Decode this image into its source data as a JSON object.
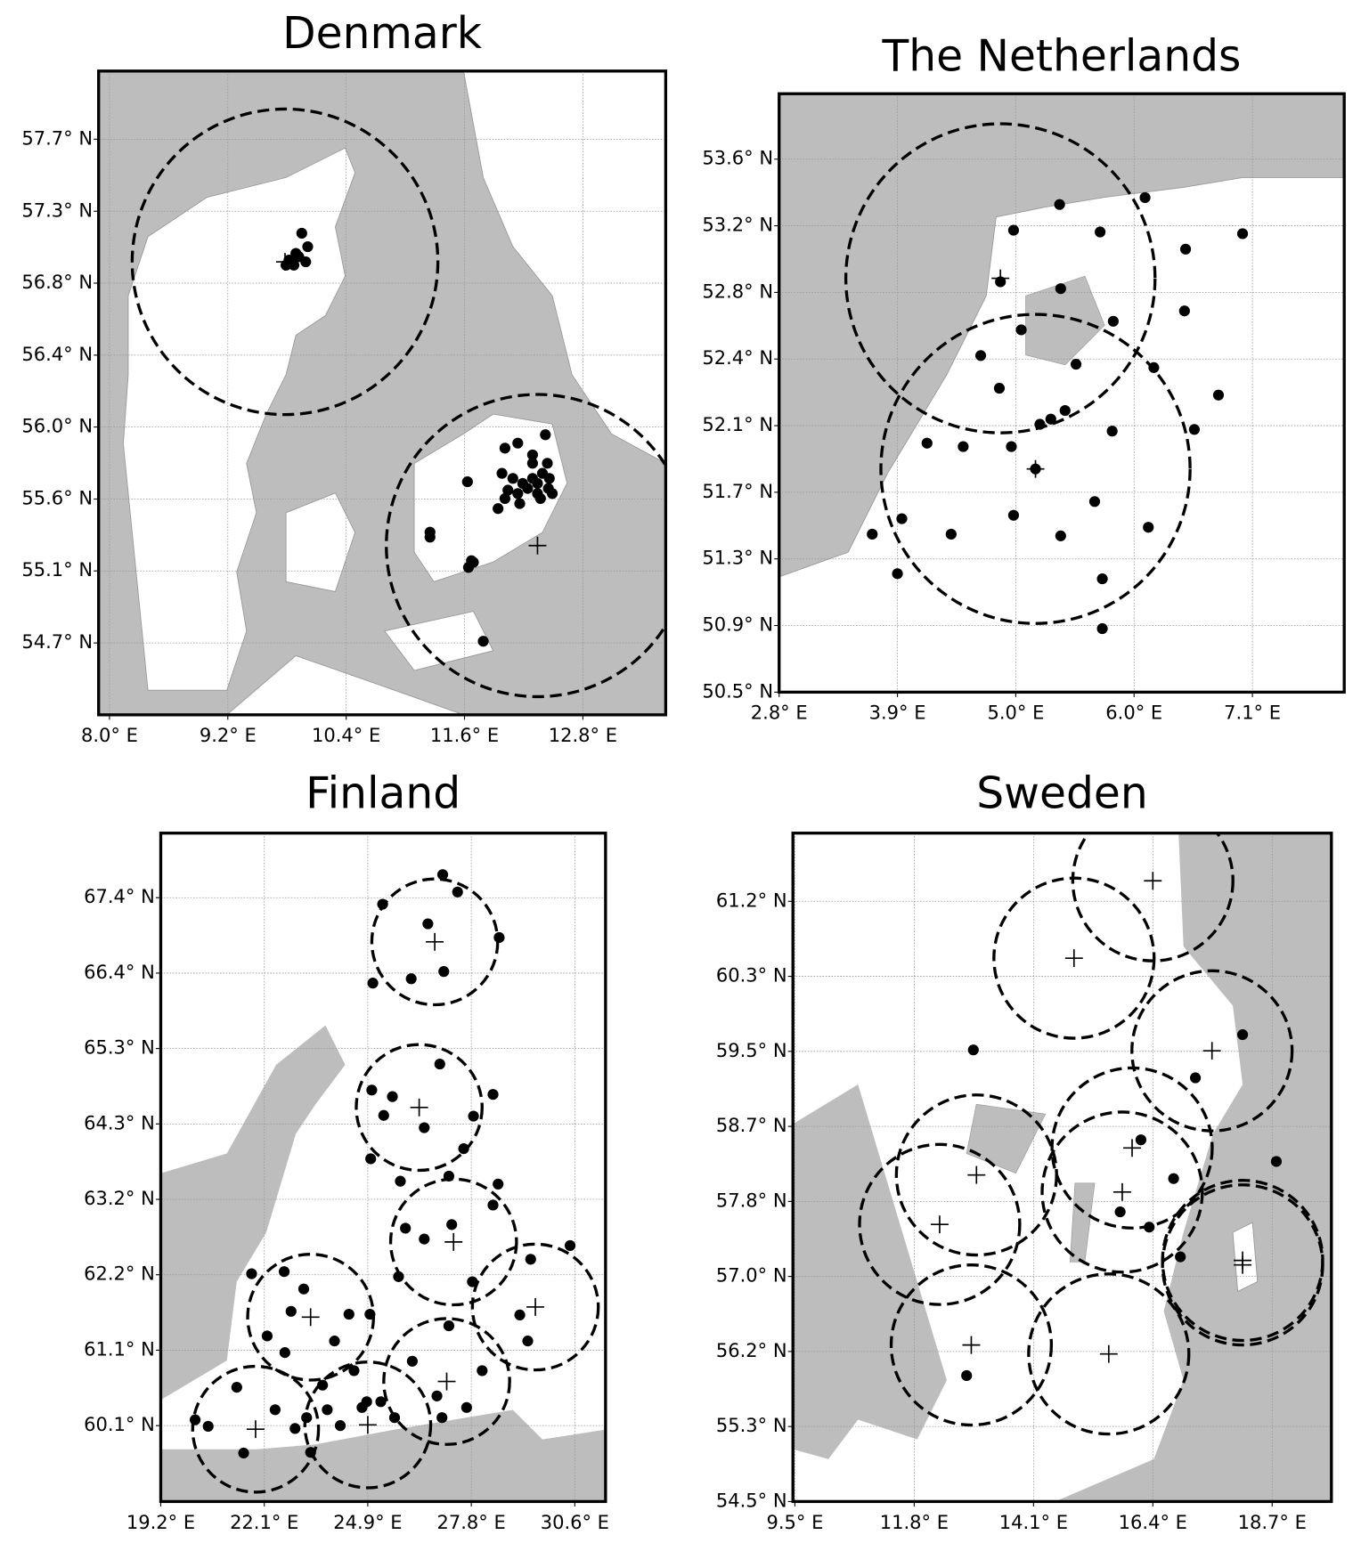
{
  "maps": [
    {
      "title": "Denmark",
      "xlim": [
        7.89,
        13.64
      ],
      "ylim": [
        54.272,
        58.106
      ],
      "xticks": [
        {
          "value": 8.0,
          "label": "8.0° E"
        },
        {
          "value": 9.2,
          "label": "9.2° E"
        },
        {
          "value": 10.4,
          "label": "10.4° E"
        },
        {
          "value": 11.6,
          "label": "11.6° E"
        },
        {
          "value": 12.8,
          "label": "12.8° E"
        }
      ],
      "yticks": [
        {
          "value": 54.7,
          "label": "54.7° N"
        },
        {
          "value": 55.129,
          "label": "55.1° N"
        },
        {
          "value": 55.557,
          "label": "55.6° N"
        },
        {
          "value": 55.986,
          "label": "56.0° N"
        },
        {
          "value": 56.414,
          "label": "56.4° N"
        },
        {
          "value": 56.843,
          "label": "56.8° N"
        },
        {
          "value": 57.271,
          "label": "57.3° N"
        },
        {
          "value": 57.7,
          "label": "57.7° N"
        }
      ],
      "stations": {
        "lon": [
          9.95,
          10.01,
          9.89,
          9.82,
          9.87,
          9.99,
          9.79,
          9.92,
          11.25,
          11.25,
          11.63,
          11.67,
          11.64,
          11.69,
          11.79,
          12.01,
          12.14,
          12.29,
          12.42,
          12.29,
          11.98,
          12.09,
          12.19,
          12.39,
          12.34,
          12.45,
          12.49,
          11.94,
          12.01,
          12.14,
          12.24,
          12.34,
          12.44,
          12.37,
          12.16,
          12.04,
          12.29,
          12.46
        ],
        "lat": [
          57.14,
          57.06,
          57.02,
          56.98,
          56.95,
          56.97,
          56.95,
          57.0,
          55.36,
          55.33,
          55.66,
          55.19,
          55.15,
          55.18,
          54.71,
          55.86,
          55.89,
          55.82,
          55.94,
          55.77,
          55.71,
          55.68,
          55.65,
          55.71,
          55.59,
          55.62,
          55.59,
          55.5,
          55.56,
          55.59,
          55.62,
          55.65,
          55.77,
          55.56,
          55.53,
          55.61,
          55.68,
          55.68
        ]
      },
      "sites": {
        "lon": [
          9.78,
          12.34
        ],
        "lat": [
          56.97,
          55.28
        ],
        "radius": [
          0.91,
          0.9
        ]
      }
    },
    {
      "title": "The Netherlands",
      "xlim": [
        2.8,
        7.958
      ],
      "ylim": [
        50.5,
        53.985
      ],
      "xticks": [
        {
          "value": 2.8,
          "label": "2.8° E"
        },
        {
          "value": 3.88,
          "label": "3.9° E"
        },
        {
          "value": 4.96,
          "label": "5.0° E"
        },
        {
          "value": 6.04,
          "label": "6.0° E"
        },
        {
          "value": 7.12,
          "label": "7.1° E"
        }
      ],
      "yticks": [
        {
          "value": 50.5,
          "label": "50.5° N"
        },
        {
          "value": 50.888,
          "label": "50.9° N"
        },
        {
          "value": 51.276,
          "label": "51.3° N"
        },
        {
          "value": 51.664,
          "label": "51.7° N"
        },
        {
          "value": 52.052,
          "label": "52.1° N"
        },
        {
          "value": 52.44,
          "label": "52.4° N"
        },
        {
          "value": 52.828,
          "label": "52.8° N"
        },
        {
          "value": 53.216,
          "label": "53.2° N"
        },
        {
          "value": 53.604,
          "label": "53.6° N"
        }
      ],
      "stations": {
        "lon": [
          5.36,
          6.14,
          4.94,
          5.73,
          6.51,
          7.03,
          4.82,
          5.37,
          5.85,
          6.5,
          5.01,
          4.64,
          5.51,
          6.22,
          4.81,
          5.41,
          5.28,
          5.18,
          6.81,
          6.59,
          5.84,
          4.15,
          4.48,
          4.92,
          5.14,
          4.94,
          3.92,
          3.65,
          4.37,
          5.68,
          6.17,
          5.37,
          3.88,
          5.75,
          5.75
        ],
        "lat": [
          53.34,
          53.38,
          53.19,
          53.18,
          53.08,
          53.17,
          52.89,
          52.85,
          52.66,
          52.72,
          52.61,
          52.46,
          52.41,
          52.39,
          52.27,
          52.14,
          52.09,
          52.06,
          52.23,
          52.03,
          52.02,
          51.95,
          51.93,
          51.93,
          51.8,
          51.53,
          51.51,
          51.42,
          51.42,
          51.61,
          51.46,
          51.41,
          51.19,
          51.16,
          50.87
        ]
      },
      "sites": {
        "lon": [
          4.82,
          5.14
        ],
        "lat": [
          52.91,
          51.8
        ],
        "radius": [
          0.9,
          0.9
        ]
      }
    },
    {
      "title": "Finland",
      "xlim": [
        19.2,
        31.489
      ],
      "ylim": [
        59.05,
        68.294
      ],
      "xticks": [
        {
          "value": 19.2,
          "label": "19.2° E"
        },
        {
          "value": 22.06,
          "label": "22.1° E"
        },
        {
          "value": 24.92,
          "label": "24.9° E"
        },
        {
          "value": 27.78,
          "label": "27.8° E"
        },
        {
          "value": 30.64,
          "label": "30.6° E"
        }
      ],
      "yticks": [
        {
          "value": 60.1,
          "label": "60.1° N"
        },
        {
          "value": 61.143,
          "label": "61.1° N"
        },
        {
          "value": 62.186,
          "label": "62.2° N"
        },
        {
          "value": 63.229,
          "label": "63.2° N"
        },
        {
          "value": 64.272,
          "label": "64.3° N"
        },
        {
          "value": 65.315,
          "label": "65.3° N"
        },
        {
          "value": 66.358,
          "label": "66.4° N"
        },
        {
          "value": 67.401,
          "label": "67.4° N"
        }
      ],
      "stations": {
        "lon": [
          26.99,
          27.4,
          25.33,
          26.58,
          28.55,
          27.02,
          25.06,
          26.12,
          26.91,
          25.03,
          25.6,
          25.36,
          27.84,
          26.48,
          28.38,
          25.0,
          27.57,
          25.82,
          27.16,
          28.52,
          28.38,
          25.96,
          26.48,
          27.24,
          30.51,
          21.71,
          22.61,
          23.15,
          25.77,
          27.81,
          29.42,
          22.8,
          24.4,
          24.98,
          22.14,
          24.0,
          27.16,
          29.12,
          29.34,
          22.63,
          26.15,
          28.08,
          21.3,
          23.67,
          24.54,
          22.36,
          23.8,
          24.89,
          25.28,
          24.76,
          26.83,
          27.65,
          20.15,
          20.51,
          22.91,
          23.23,
          24.16,
          25.66,
          26.97,
          21.49,
          23.34
        ],
        "lat": [
          67.72,
          67.48,
          67.31,
          67.04,
          66.85,
          66.38,
          66.22,
          66.28,
          65.1,
          64.74,
          64.65,
          64.39,
          64.38,
          64.22,
          64.68,
          63.79,
          63.93,
          63.48,
          63.55,
          63.44,
          63.15,
          62.83,
          62.68,
          62.88,
          62.59,
          62.2,
          62.23,
          61.99,
          62.16,
          62.09,
          62.4,
          61.68,
          61.64,
          61.64,
          61.34,
          61.27,
          61.48,
          61.63,
          61.27,
          61.11,
          60.99,
          60.86,
          60.63,
          60.66,
          60.86,
          60.32,
          60.32,
          60.43,
          60.43,
          60.35,
          60.51,
          60.35,
          60.18,
          60.09,
          60.06,
          60.21,
          60.1,
          60.21,
          60.21,
          59.72,
          59.73
        ]
      },
      "sites": {
        "lon": [
          26.77,
          26.34,
          27.29,
          29.55,
          23.34,
          27.1,
          21.82,
          24.92
        ],
        "lat": [
          66.79,
          64.5,
          62.64,
          61.74,
          61.6,
          60.71,
          60.05,
          60.11
        ],
        "radius": [
          0.87,
          0.87,
          0.87,
          0.87,
          0.87,
          0.87,
          0.87,
          0.87
        ]
      }
    },
    {
      "title": "Sweden",
      "xlim": [
        9.462,
        19.842
      ],
      "ylim": [
        54.5,
        61.93
      ],
      "xticks": [
        {
          "value": 9.5,
          "label": "9.5° E"
        },
        {
          "value": 11.8,
          "label": "11.8° E"
        },
        {
          "value": 14.1,
          "label": "14.1° E"
        },
        {
          "value": 16.4,
          "label": "16.4° E"
        },
        {
          "value": 18.7,
          "label": "18.7° E"
        }
      ],
      "yticks": [
        {
          "value": 54.5,
          "label": "54.5° N"
        },
        {
          "value": 55.334,
          "label": "55.3° N"
        },
        {
          "value": 56.168,
          "label": "56.2° N"
        },
        {
          "value": 57.002,
          "label": "57.0° N"
        },
        {
          "value": 57.836,
          "label": "57.8° N"
        },
        {
          "value": 58.67,
          "label": "58.7° N"
        },
        {
          "value": 59.504,
          "label": "59.5° N"
        },
        {
          "value": 60.338,
          "label": "60.3° N"
        },
        {
          "value": 61.172,
          "label": "61.2° N"
        }
      ],
      "stations": {
        "lon": [
          12.94,
          18.13,
          17.22,
          16.17,
          16.8,
          18.78,
          15.77,
          16.33,
          16.93,
          12.81
        ],
        "lat": [
          59.52,
          59.69,
          59.21,
          58.52,
          58.09,
          58.28,
          57.72,
          57.55,
          57.22,
          55.9
        ]
      },
      "sites": {
        "lon": [
          16.4,
          14.88,
          17.54,
          13.0,
          16.0,
          12.29,
          15.81,
          18.13,
          18.13,
          12.9,
          15.55
        ],
        "lat": [
          61.4,
          60.54,
          59.51,
          58.13,
          58.43,
          57.58,
          57.94,
          57.18,
          57.13,
          56.24,
          56.14
        ],
        "radius": [
          0.89,
          0.89,
          0.89,
          0.89,
          0.89,
          0.89,
          0.89,
          0.89,
          0.89,
          0.89,
          0.89
        ]
      }
    }
  ]
}
